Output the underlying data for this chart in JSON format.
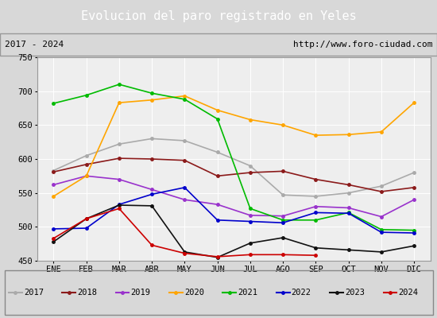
{
  "title": "Evolucion del paro registrado en Yeles",
  "subtitle_left": "2017 - 2024",
  "subtitle_right": "http://www.foro-ciudad.com",
  "x_labels": [
    "ENE",
    "FEB",
    "MAR",
    "ABR",
    "MAY",
    "JUN",
    "JUL",
    "AGO",
    "SEP",
    "OCT",
    "NOV",
    "DIC"
  ],
  "ylim": [
    450,
    750
  ],
  "yticks": [
    450,
    500,
    550,
    600,
    650,
    700,
    750
  ],
  "series": {
    "2017": {
      "color": "#aaaaaa",
      "data": [
        583,
        605,
        622,
        630,
        627,
        610,
        590,
        547,
        545,
        550,
        560,
        580
      ]
    },
    "2018": {
      "color": "#8b1a1a",
      "data": [
        581,
        592,
        601,
        600,
        598,
        575,
        580,
        582,
        570,
        562,
        552,
        558
      ]
    },
    "2019": {
      "color": "#9932cc",
      "data": [
        562,
        575,
        570,
        555,
        540,
        533,
        517,
        516,
        530,
        528,
        515,
        540
      ]
    },
    "2020": {
      "color": "#ffa500",
      "data": [
        545,
        575,
        683,
        687,
        693,
        672,
        658,
        650,
        635,
        636,
        640,
        683
      ]
    },
    "2021": {
      "color": "#00bb00",
      "data": [
        682,
        694,
        710,
        697,
        688,
        659,
        527,
        510,
        510,
        521,
        496,
        495
      ]
    },
    "2022": {
      "color": "#0000cc",
      "data": [
        497,
        498,
        533,
        548,
        558,
        510,
        508,
        506,
        521,
        520,
        492,
        491
      ]
    },
    "2023": {
      "color": "#111111",
      "data": [
        478,
        512,
        532,
        531,
        463,
        455,
        476,
        484,
        469,
        466,
        463,
        472
      ]
    },
    "2024": {
      "color": "#cc0000",
      "data": [
        483,
        512,
        527,
        473,
        461,
        456,
        459,
        459,
        458,
        null,
        null,
        null
      ]
    }
  },
  "background_color": "#d8d8d8",
  "plot_bg_color": "#eeeeee",
  "title_bg_color": "#5599cc",
  "title_color": "white",
  "title_fontsize": 11,
  "subtitle_fontsize": 8,
  "legend_fontsize": 7.5,
  "tick_fontsize": 7.5
}
